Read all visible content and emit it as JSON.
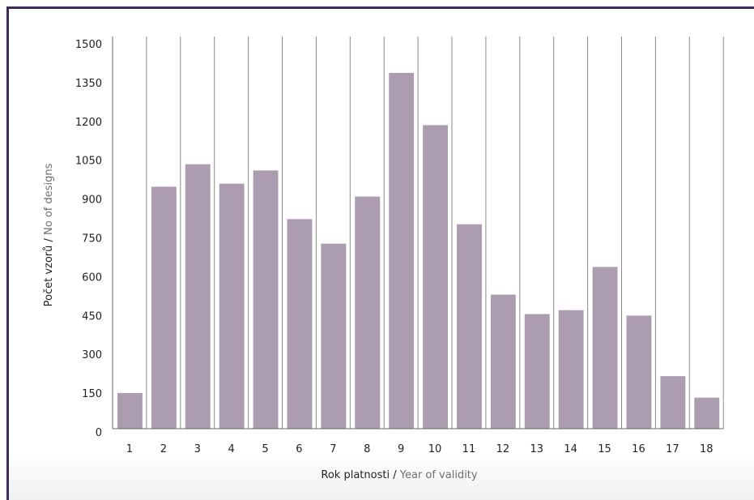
{
  "colors": {
    "frame": "#3d2b5a",
    "bar": "#ac9cb0",
    "grid": "#8a8a8a",
    "secondary_text": "#6f6f6f"
  },
  "chart_data": {
    "type": "bar",
    "categories": [
      "1",
      "2",
      "3",
      "4",
      "5",
      "6",
      "7",
      "8",
      "9",
      "10",
      "11",
      "12",
      "13",
      "14",
      "15",
      "16",
      "17",
      "18"
    ],
    "values": [
      138,
      935,
      1022,
      947,
      998,
      810,
      715,
      897,
      1375,
      1173,
      790,
      518,
      443,
      458,
      625,
      437,
      203,
      120
    ],
    "ylim": [
      0,
      1500
    ],
    "yticks": [
      "0",
      "150",
      "300",
      "450",
      "600",
      "750",
      "900",
      "1050",
      "1200",
      "1350",
      "1500"
    ],
    "xlabel_primary": "Rok platnosti",
    "xlabel_sep": " / ",
    "xlabel_secondary": "Year of validity",
    "ylabel_primary": "Počet vzorů",
    "ylabel_sep": " / ",
    "ylabel_secondary": "No of designs",
    "grid": "vertical"
  }
}
